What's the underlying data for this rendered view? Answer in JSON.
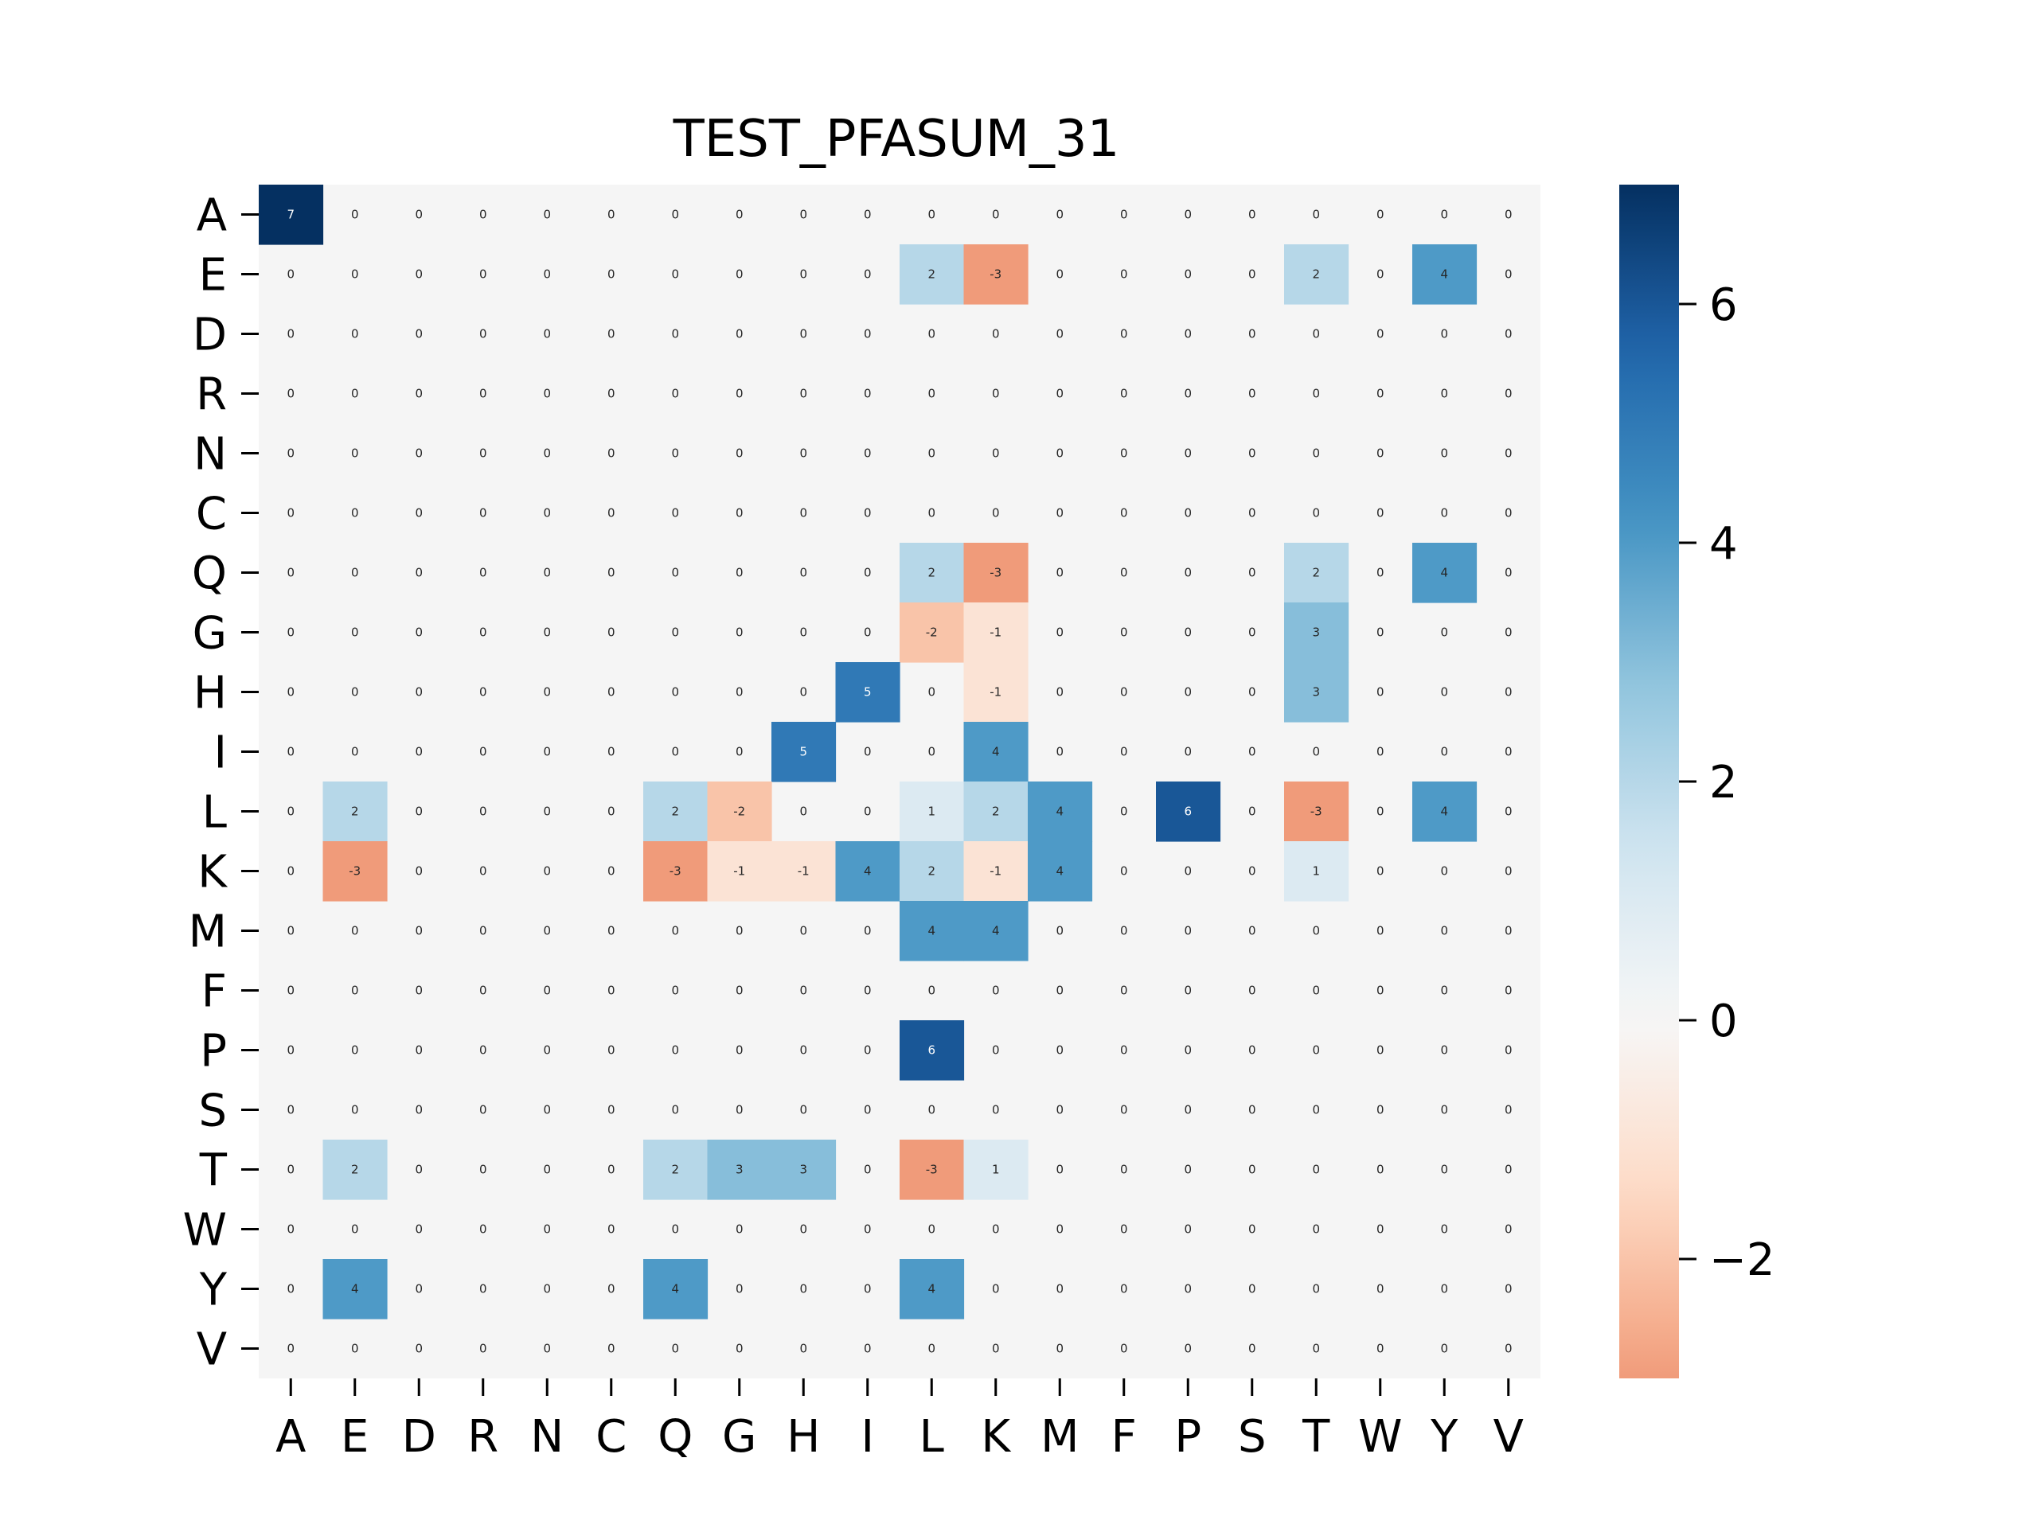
{
  "chart_data": {
    "type": "heatmap",
    "title": "TEST_PFASUM_31",
    "xlabel": "",
    "ylabel": "",
    "row_labels": [
      "A",
      "E",
      "D",
      "R",
      "N",
      "C",
      "Q",
      "G",
      "H",
      "I",
      "L",
      "K",
      "M",
      "F",
      "P",
      "S",
      "T",
      "W",
      "Y",
      "V"
    ],
    "col_labels": [
      "A",
      "E",
      "D",
      "R",
      "N",
      "C",
      "Q",
      "G",
      "H",
      "I",
      "L",
      "K",
      "M",
      "F",
      "P",
      "S",
      "T",
      "W",
      "Y",
      "V"
    ],
    "values": [
      [
        7,
        0,
        0,
        0,
        0,
        0,
        0,
        0,
        0,
        0,
        0,
        0,
        0,
        0,
        0,
        0,
        0,
        0,
        0,
        0
      ],
      [
        0,
        0,
        0,
        0,
        0,
        0,
        0,
        0,
        0,
        0,
        2,
        -3,
        0,
        0,
        0,
        0,
        2,
        0,
        4,
        0
      ],
      [
        0,
        0,
        0,
        0,
        0,
        0,
        0,
        0,
        0,
        0,
        0,
        0,
        0,
        0,
        0,
        0,
        0,
        0,
        0,
        0
      ],
      [
        0,
        0,
        0,
        0,
        0,
        0,
        0,
        0,
        0,
        0,
        0,
        0,
        0,
        0,
        0,
        0,
        0,
        0,
        0,
        0
      ],
      [
        0,
        0,
        0,
        0,
        0,
        0,
        0,
        0,
        0,
        0,
        0,
        0,
        0,
        0,
        0,
        0,
        0,
        0,
        0,
        0
      ],
      [
        0,
        0,
        0,
        0,
        0,
        0,
        0,
        0,
        0,
        0,
        0,
        0,
        0,
        0,
        0,
        0,
        0,
        0,
        0,
        0
      ],
      [
        0,
        0,
        0,
        0,
        0,
        0,
        0,
        0,
        0,
        0,
        2,
        -3,
        0,
        0,
        0,
        0,
        2,
        0,
        4,
        0
      ],
      [
        0,
        0,
        0,
        0,
        0,
        0,
        0,
        0,
        0,
        0,
        -2,
        -1,
        0,
        0,
        0,
        0,
        3,
        0,
        0,
        0
      ],
      [
        0,
        0,
        0,
        0,
        0,
        0,
        0,
        0,
        0,
        5,
        0,
        -1,
        0,
        0,
        0,
        0,
        3,
        0,
        0,
        0
      ],
      [
        0,
        0,
        0,
        0,
        0,
        0,
        0,
        0,
        5,
        0,
        0,
        4,
        0,
        0,
        0,
        0,
        0,
        0,
        0,
        0
      ],
      [
        0,
        2,
        0,
        0,
        0,
        0,
        2,
        -2,
        0,
        0,
        1,
        2,
        4,
        0,
        6,
        0,
        -3,
        0,
        4,
        0
      ],
      [
        0,
        -3,
        0,
        0,
        0,
        0,
        -3,
        -1,
        -1,
        4,
        2,
        -1,
        4,
        0,
        0,
        0,
        1,
        0,
        0,
        0
      ],
      [
        0,
        0,
        0,
        0,
        0,
        0,
        0,
        0,
        0,
        0,
        4,
        4,
        0,
        0,
        0,
        0,
        0,
        0,
        0,
        0
      ],
      [
        0,
        0,
        0,
        0,
        0,
        0,
        0,
        0,
        0,
        0,
        0,
        0,
        0,
        0,
        0,
        0,
        0,
        0,
        0,
        0
      ],
      [
        0,
        0,
        0,
        0,
        0,
        0,
        0,
        0,
        0,
        0,
        6,
        0,
        0,
        0,
        0,
        0,
        0,
        0,
        0,
        0
      ],
      [
        0,
        0,
        0,
        0,
        0,
        0,
        0,
        0,
        0,
        0,
        0,
        0,
        0,
        0,
        0,
        0,
        0,
        0,
        0,
        0
      ],
      [
        0,
        2,
        0,
        0,
        0,
        0,
        2,
        3,
        3,
        0,
        -3,
        1,
        0,
        0,
        0,
        0,
        0,
        0,
        0,
        0
      ],
      [
        0,
        0,
        0,
        0,
        0,
        0,
        0,
        0,
        0,
        0,
        0,
        0,
        0,
        0,
        0,
        0,
        0,
        0,
        0,
        0
      ],
      [
        0,
        4,
        0,
        0,
        0,
        0,
        4,
        0,
        0,
        0,
        4,
        0,
        0,
        0,
        0,
        0,
        0,
        0,
        0,
        0
      ],
      [
        0,
        0,
        0,
        0,
        0,
        0,
        0,
        0,
        0,
        0,
        0,
        0,
        0,
        0,
        0,
        0,
        0,
        0,
        0,
        0
      ]
    ],
    "zero_values_drawn_as_background": true,
    "background_color": "#f5f5f5",
    "colormap": "RdBu (diverging, red negative, blue positive)",
    "vmin": -3,
    "vmax": 7,
    "colorbar": {
      "ticks": [
        -2,
        0,
        2,
        4,
        6
      ],
      "tick_labels": [
        "−2",
        "0",
        "2",
        "4",
        "6"
      ]
    },
    "cell_annotations": true,
    "grid": false,
    "legend": "none"
  }
}
